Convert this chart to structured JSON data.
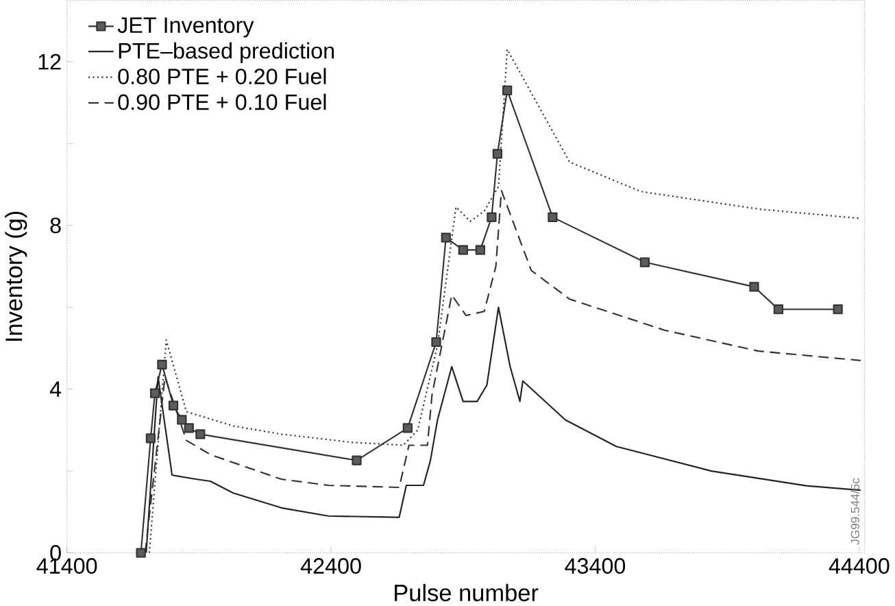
{
  "chart_data": {
    "type": "line",
    "xlabel": "Pulse number",
    "ylabel": "Inventory (g)",
    "xlim": [
      41400,
      44420
    ],
    "ylim": [
      0,
      13.5
    ],
    "xticks": [
      41400,
      42400,
      43400,
      44400
    ],
    "yticks": [
      0,
      {
        "value": 2,
        "label": null
      },
      4,
      {
        "value": 6,
        "label": null
      },
      8,
      {
        "value": 10,
        "label": null
      },
      12
    ],
    "grid": false,
    "legend": "top left",
    "annotations": [
      "JG99.544/5c"
    ],
    "series": [
      {
        "name": "JET Inventory",
        "color": "#333333",
        "marker": "square",
        "line_style": "solid",
        "x": [
          41680,
          41717,
          41733,
          41760,
          41803,
          41835,
          41862,
          41905,
          42497,
          42690,
          42798,
          42835,
          42900,
          42965,
          43008,
          43030,
          43067,
          43239,
          43588,
          44002,
          44094,
          44319
        ],
        "values": [
          0,
          2.8,
          3.9,
          4.6,
          3.6,
          3.25,
          3.05,
          2.9,
          2.26,
          3.05,
          5.15,
          7.7,
          7.4,
          7.4,
          8.2,
          9.75,
          11.3,
          8.2,
          7.1,
          6.5,
          5.95,
          5.95
        ]
      },
      {
        "name": "PTE–based prediction",
        "color": "#222222",
        "marker": "none",
        "line_style": "solid",
        "x": [
          41700,
          41745,
          41798,
          41889,
          41943,
          42030,
          42212,
          42390,
          42658,
          42685,
          42750,
          42776,
          42803,
          42857,
          42900,
          42953,
          42990,
          43034,
          43078,
          43115,
          43126,
          43287,
          43480,
          43840,
          44200,
          44405
        ],
        "values": [
          0,
          4.3,
          1.9,
          1.8,
          1.75,
          1.46,
          1.1,
          0.9,
          0.87,
          1.65,
          1.65,
          2.25,
          3.25,
          4.55,
          3.7,
          3.7,
          4.1,
          6.0,
          4.55,
          3.7,
          4.2,
          3.25,
          2.6,
          2.0,
          1.64,
          1.53
        ]
      },
      {
        "name": "0.80 PTE + 0.20 Fuel",
        "color": "#333333",
        "marker": "none",
        "line_style": "dotted",
        "x": [
          41712,
          41776,
          41852,
          42030,
          42212,
          42480,
          42674,
          42728,
          42803,
          42873,
          42927,
          42980,
          43034,
          43067,
          43303,
          43572,
          44018,
          44405
        ],
        "values": [
          0,
          5.2,
          3.45,
          3.1,
          2.9,
          2.7,
          2.63,
          3.0,
          5.07,
          8.45,
          8.1,
          8.35,
          8.95,
          12.3,
          9.55,
          8.83,
          8.4,
          8.17
        ]
      },
      {
        "name": "0.90 PTE + 0.10 Fuel",
        "color": "#333333",
        "marker": "none",
        "line_style": "dashed",
        "x": [
          41696,
          41771,
          41852,
          41943,
          42212,
          42390,
          42658,
          42695,
          42765,
          42782,
          42857,
          42911,
          42980,
          43024,
          43045,
          43158,
          43303,
          43663,
          44018,
          44405
        ],
        "values": [
          0,
          4.3,
          2.75,
          2.4,
          1.8,
          1.65,
          1.6,
          2.63,
          2.63,
          3.85,
          6.3,
          5.8,
          5.9,
          7.0,
          8.85,
          6.9,
          6.2,
          5.44,
          4.93,
          4.7
        ]
      }
    ]
  }
}
